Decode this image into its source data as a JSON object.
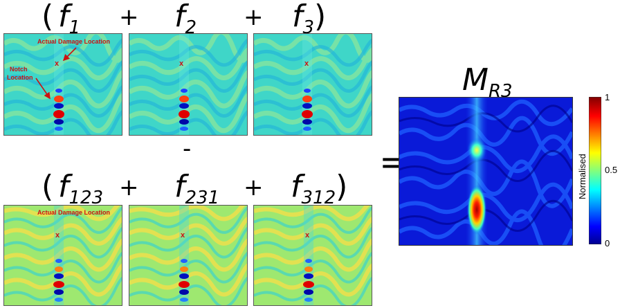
{
  "top_row": {
    "open_paren": "(",
    "terms": [
      {
        "symbol": "f",
        "subscript": "1"
      },
      {
        "symbol": "f",
        "subscript": "2"
      },
      {
        "symbol": "f",
        "subscript": "3"
      }
    ],
    "close_paren": ")",
    "plus": "+"
  },
  "minus": "-",
  "bottom_row": {
    "open_paren": "(",
    "terms": [
      {
        "symbol": "f",
        "subscript": "123"
      },
      {
        "symbol": "f",
        "subscript": "231"
      },
      {
        "symbol": "f",
        "subscript": "312"
      }
    ],
    "close_paren": ")",
    "plus": "+"
  },
  "equals": "=",
  "result": {
    "symbol": "M",
    "subscript": "R3"
  },
  "annotations": {
    "actual_damage": "Actual Damage Location",
    "notch_line1": "Notch",
    "notch_line2": "Location",
    "marker": "x"
  },
  "colorbar": {
    "label": "Normalised",
    "ticks": [
      "1",
      "0.5",
      "0"
    ],
    "colors": [
      "#00008f",
      "#0000ff",
      "#00ffff",
      "#ffff00",
      "#ff0000",
      "#800000"
    ]
  }
}
